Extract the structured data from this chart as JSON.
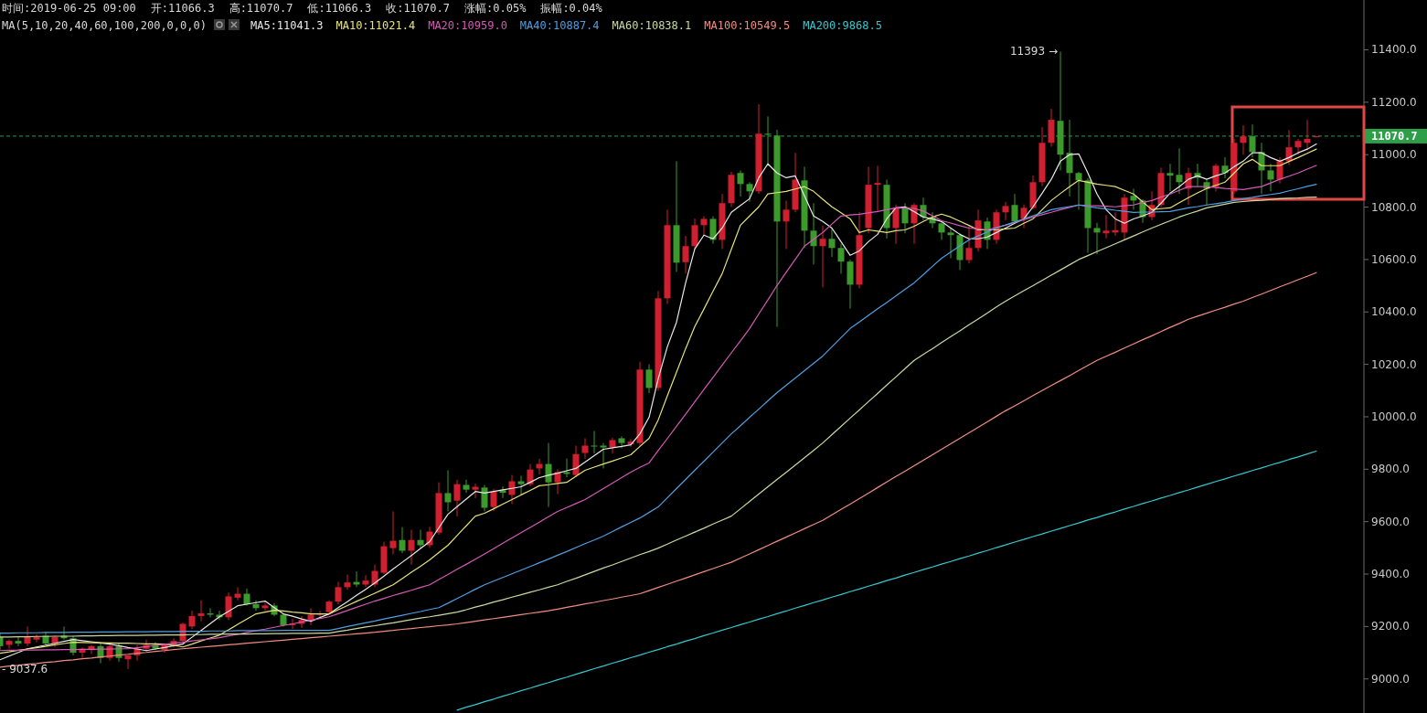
{
  "chart_data": {
    "type": "candlestick",
    "legend": "top",
    "tick_labels": "y",
    "legend_title": "MA(5,10,20,40,60,100,200,0,0,0)",
    "categories": [
      null,
      null,
      null,
      null,
      null,
      null,
      null,
      null,
      null,
      null,
      null,
      null,
      null,
      null,
      null,
      null,
      null,
      null,
      null,
      null,
      null,
      null,
      null,
      null,
      null,
      null,
      null,
      null,
      null,
      null,
      null,
      null,
      null,
      null,
      null,
      null,
      null,
      null,
      null,
      null,
      null,
      null,
      null,
      null,
      null,
      null,
      null,
      null,
      null,
      null,
      null,
      null,
      null,
      null,
      null,
      null,
      null,
      null,
      null,
      null,
      null,
      null,
      null,
      null,
      null,
      null,
      null,
      null,
      null,
      null,
      null,
      null,
      null,
      null,
      null,
      null,
      null,
      null,
      null,
      null,
      null,
      null,
      null,
      null,
      null,
      null,
      null,
      null,
      null,
      null,
      null,
      null,
      null,
      null,
      null,
      null,
      null,
      null,
      null,
      null,
      null,
      null,
      null,
      null,
      null,
      null,
      null,
      null,
      null,
      null,
      null,
      null,
      null,
      null,
      null,
      null,
      null,
      null,
      null,
      null,
      null,
      null,
      null,
      null,
      null,
      null,
      null,
      null,
      null,
      null,
      null,
      null,
      null,
      null,
      null,
      null,
      null,
      null,
      null,
      null,
      null,
      null,
      null,
      null,
      null
    ],
    "ohlc": [
      [
        9160,
        9175,
        9110,
        9125
      ],
      [
        9130,
        9150,
        9115,
        9145
      ],
      [
        9145,
        9160,
        9125,
        9135
      ],
      [
        9135,
        9200,
        9125,
        9160
      ],
      [
        9150,
        9170,
        9140,
        9160
      ],
      [
        9165,
        9180,
        9130,
        9135
      ],
      [
        9135,
        9165,
        9120,
        9160
      ],
      [
        9165,
        9200,
        9150,
        9155
      ],
      [
        9155,
        9165,
        9090,
        9100
      ],
      [
        9100,
        9120,
        9080,
        9115
      ],
      [
        9110,
        9130,
        9095,
        9125
      ],
      [
        9125,
        9140,
        9060,
        9080
      ],
      [
        9080,
        9130,
        9070,
        9125
      ],
      [
        9125,
        9135,
        9065,
        9080
      ],
      [
        9075,
        9090,
        9037.6,
        9090
      ],
      [
        9090,
        9130,
        9070,
        9115
      ],
      [
        9115,
        9150,
        9105,
        9130
      ],
      [
        9130,
        9140,
        9110,
        9115
      ],
      [
        9110,
        9135,
        9100,
        9130
      ],
      [
        9130,
        9155,
        9120,
        9145
      ],
      [
        9145,
        9215,
        9130,
        9210
      ],
      [
        9200,
        9260,
        9190,
        9240
      ],
      [
        9240,
        9300,
        9220,
        9250
      ],
      [
        9250,
        9270,
        9235,
        9245
      ],
      [
        9245,
        9260,
        9225,
        9235
      ],
      [
        9235,
        9330,
        9225,
        9315
      ],
      [
        9310,
        9350,
        9300,
        9325
      ],
      [
        9325,
        9345,
        9280,
        9285
      ],
      [
        9285,
        9300,
        9260,
        9270
      ],
      [
        9270,
        9290,
        9260,
        9280
      ],
      [
        9280,
        9290,
        9240,
        9245
      ],
      [
        9245,
        9250,
        9200,
        9205
      ],
      [
        9205,
        9230,
        9190,
        9210
      ],
      [
        9210,
        9240,
        9195,
        9225
      ],
      [
        9225,
        9270,
        9205,
        9245
      ],
      [
        9245,
        9260,
        9235,
        9250
      ],
      [
        9255,
        9300,
        9245,
        9295
      ],
      [
        9295,
        9370,
        9285,
        9350
      ],
      [
        9350,
        9398,
        9340,
        9368
      ],
      [
        9370,
        9410,
        9350,
        9360
      ],
      [
        9360,
        9395,
        9350,
        9375
      ],
      [
        9360,
        9436,
        9350,
        9412
      ],
      [
        9405,
        9523,
        9400,
        9506
      ],
      [
        9499,
        9639,
        9475,
        9527
      ],
      [
        9530,
        9579,
        9480,
        9489
      ],
      [
        9489,
        9569,
        9436,
        9530
      ],
      [
        9530,
        9569,
        9500,
        9510
      ],
      [
        9510,
        9580,
        9500,
        9562
      ],
      [
        9558,
        9750,
        9550,
        9709
      ],
      [
        9709,
        9796,
        9639,
        9674
      ],
      [
        9680,
        9760,
        9620,
        9743
      ],
      [
        9740,
        9760,
        9710,
        9722
      ],
      [
        9722,
        9745,
        9690,
        9733
      ],
      [
        9730,
        9740,
        9639,
        9653
      ],
      [
        9656,
        9725,
        9640,
        9715
      ],
      [
        9720,
        9735,
        9690,
        9710
      ],
      [
        9702,
        9778,
        9667,
        9754
      ],
      [
        9754,
        9775,
        9700,
        9743
      ],
      [
        9743,
        9820,
        9735,
        9799
      ],
      [
        9803,
        9840,
        9780,
        9820
      ],
      [
        9820,
        9900,
        9656,
        9750
      ],
      [
        9750,
        9800,
        9705,
        9789
      ],
      [
        9789,
        9841,
        9770,
        9782
      ],
      [
        9778,
        9890,
        9770,
        9858
      ],
      [
        9862,
        9918,
        9840,
        9890
      ],
      [
        9890,
        9946,
        9860,
        9887
      ],
      [
        9890,
        9900,
        9803,
        9883
      ],
      [
        9883,
        9920,
        9860,
        9911
      ],
      [
        9918,
        9925,
        9880,
        9900
      ],
      [
        9895,
        9915,
        9885,
        9905
      ],
      [
        9900,
        10210,
        9890,
        10180
      ],
      [
        10180,
        10200,
        10090,
        10110
      ],
      [
        10110,
        10480,
        10100,
        10452
      ],
      [
        10452,
        10790,
        10430,
        10731
      ],
      [
        10731,
        10975,
        10553,
        10588
      ],
      [
        10590,
        10690,
        10546,
        10651
      ],
      [
        10651,
        10756,
        10640,
        10731
      ],
      [
        10731,
        10765,
        10690,
        10755
      ],
      [
        10755,
        10765,
        10660,
        10675
      ],
      [
        10675,
        10850,
        10640,
        10815
      ],
      [
        10815,
        10935,
        10800,
        10923
      ],
      [
        10930,
        10940,
        10840,
        10888
      ],
      [
        10888,
        10895,
        10820,
        10860
      ],
      [
        10860,
        11192,
        10850,
        11080
      ],
      [
        11080,
        11146,
        10958,
        11076
      ],
      [
        11073,
        11095,
        10343,
        10745
      ],
      [
        10745,
        10825,
        10640,
        10790
      ],
      [
        10790,
        11007,
        10780,
        10905
      ],
      [
        10902,
        10954,
        10644,
        10710
      ],
      [
        10710,
        10815,
        10581,
        10651
      ],
      [
        10651,
        10730,
        10494,
        10679
      ],
      [
        10679,
        10720,
        10610,
        10644
      ],
      [
        10644,
        10660,
        10546,
        10592
      ],
      [
        10592,
        10600,
        10413,
        10504
      ],
      [
        10504,
        10780,
        10490,
        10693
      ],
      [
        10720,
        10954,
        10700,
        10885
      ],
      [
        10885,
        10957,
        10780,
        10892
      ],
      [
        10885,
        10905,
        10680,
        10720
      ],
      [
        10720,
        10810,
        10660,
        10797
      ],
      [
        10800,
        10815,
        10700,
        10738
      ],
      [
        10738,
        10815,
        10660,
        10808
      ],
      [
        10808,
        10836,
        10750,
        10762
      ],
      [
        10762,
        10780,
        10720,
        10738
      ],
      [
        10738,
        10745,
        10675,
        10703
      ],
      [
        10703,
        10720,
        10605,
        10693
      ],
      [
        10693,
        10700,
        10560,
        10598
      ],
      [
        10598,
        10727,
        10585,
        10644
      ],
      [
        10644,
        10790,
        10630,
        10749
      ],
      [
        10745,
        10760,
        10640,
        10675
      ],
      [
        10675,
        10790,
        10660,
        10780
      ],
      [
        10780,
        10820,
        10750,
        10804
      ],
      [
        10808,
        10850,
        10740,
        10745
      ],
      [
        10755,
        10810,
        10720,
        10797
      ],
      [
        10797,
        10920,
        10790,
        10895
      ],
      [
        10895,
        11105,
        10880,
        11045
      ],
      [
        11045,
        11175,
        11030,
        11133
      ],
      [
        11129,
        11393,
        10940,
        11000
      ],
      [
        11007,
        11133,
        10840,
        10930
      ],
      [
        10930,
        10935,
        10790,
        10902
      ],
      [
        10902,
        10910,
        10626,
        10720
      ],
      [
        10720,
        10740,
        10620,
        10703
      ],
      [
        10700,
        10770,
        10680,
        10710
      ],
      [
        10703,
        10780,
        10690,
        10712
      ],
      [
        10703,
        10850,
        10675,
        10836
      ],
      [
        10843,
        10870,
        10790,
        10825
      ],
      [
        10825,
        10830,
        10740,
        10762
      ],
      [
        10762,
        10860,
        10750,
        10808
      ],
      [
        10808,
        10950,
        10800,
        10930
      ],
      [
        10930,
        10965,
        10860,
        10920
      ],
      [
        10923,
        11024,
        10850,
        10895
      ],
      [
        10870,
        10950,
        10808,
        10930
      ],
      [
        10930,
        10965,
        10880,
        10912
      ],
      [
        10895,
        10905,
        10808,
        10870
      ],
      [
        10877,
        10965,
        10860,
        10958
      ],
      [
        10958,
        10990,
        10910,
        10930
      ],
      [
        10860,
        11060,
        10850,
        11045
      ],
      [
        11045,
        11112,
        11000,
        11070
      ],
      [
        11070,
        11115,
        10990,
        11010
      ],
      [
        11010,
        11045,
        10850,
        10940
      ],
      [
        10940,
        10965,
        10860,
        10905
      ],
      [
        10905,
        10990,
        10890,
        10975
      ],
      [
        10975,
        11094,
        10960,
        11028
      ],
      [
        11028,
        11060,
        11000,
        11052
      ],
      [
        11045,
        11133,
        11017,
        11060
      ],
      [
        11066.3,
        11070.7,
        11066.3,
        11070.7
      ]
    ],
    "colors": [
      "#3c9a2c",
      "#d0202f",
      "#3c9a2c",
      "#d0202f",
      "#d0202f",
      "#3c9a2c",
      "#d0202f",
      "#3c9a2c",
      "#3c9a2c",
      "#d0202f",
      "#d0202f",
      "#3c9a2c",
      "#d0202f",
      "#3c9a2c",
      "#d0202f",
      "#d0202f",
      "#d0202f",
      "#3c9a2c",
      "#d0202f",
      "#d0202f",
      "#d0202f",
      "#d0202f",
      "#d0202f",
      "#3c9a2c",
      "#3c9a2c",
      "#d0202f",
      "#d0202f",
      "#3c9a2c",
      "#3c9a2c",
      "#d0202f",
      "#3c9a2c",
      "#3c9a2c",
      "#d0202f",
      "#d0202f",
      "#d0202f",
      "#d0202f",
      "#d0202f",
      "#d0202f",
      "#d0202f",
      "#3c9a2c",
      "#d0202f",
      "#d0202f",
      "#d0202f",
      "#d0202f",
      "#3c9a2c",
      "#d0202f",
      "#3c9a2c",
      "#d0202f",
      "#d0202f",
      "#3c9a2c",
      "#d0202f",
      "#3c9a2c",
      "#d0202f",
      "#3c9a2c",
      "#d0202f",
      "#3c9a2c",
      "#d0202f",
      "#3c9a2c",
      "#d0202f",
      "#d0202f",
      "#3c9a2c",
      "#d0202f",
      "#3c9a2c",
      "#d0202f",
      "#d0202f",
      "#3c9a2c",
      "#3c9a2c",
      "#d0202f",
      "#3c9a2c",
      "#d0202f",
      "#d0202f",
      "#3c9a2c",
      "#d0202f",
      "#d0202f",
      "#3c9a2c",
      "#d0202f",
      "#d0202f",
      "#d0202f",
      "#3c9a2c",
      "#d0202f",
      "#d0202f",
      "#3c9a2c",
      "#3c9a2c",
      "#d0202f",
      "#3c9a2c",
      "#3c9a2c",
      "#d0202f",
      "#d0202f",
      "#3c9a2c",
      "#3c9a2c",
      "#d0202f",
      "#3c9a2c",
      "#3c9a2c",
      "#3c9a2c",
      "#d0202f",
      "#d0202f",
      "#d0202f",
      "#3c9a2c",
      "#d0202f",
      "#3c9a2c",
      "#d0202f",
      "#3c9a2c",
      "#3c9a2c",
      "#3c9a2c",
      "#3c9a2c",
      "#3c9a2c",
      "#d0202f",
      "#d0202f",
      "#3c9a2c",
      "#d0202f",
      "#d0202f",
      "#3c9a2c",
      "#d0202f",
      "#d0202f",
      "#d0202f",
      "#d0202f",
      "#3c9a2c",
      "#3c9a2c",
      "#3c9a2c",
      "#3c9a2c",
      "#3c9a2c",
      "#d0202f",
      "#d0202f",
      "#d0202f",
      "#3c9a2c",
      "#3c9a2c",
      "#d0202f",
      "#d0202f",
      "#3c9a2c",
      "#3c9a2c",
      "#d0202f",
      "#3c9a2c",
      "#3c9a2c",
      "#d0202f",
      "#3c9a2c",
      "#d0202f",
      "#d0202f",
      "#3c9a2c",
      "#3c9a2c",
      "#3c9a2c",
      "#d0202f",
      "#d0202f",
      "#d0202f",
      "#d0202f",
      "#d0202f"
    ],
    "series": [
      {
        "name": "MA5:11041.3",
        "type": "line",
        "color": "#e8e8e8",
        "values": [
          9073,
          9087,
          9101,
          9115,
          9122,
          9129,
          9136,
          9143,
          9150,
          9146,
          9142,
          9137,
          9133,
          9127,
          9120,
          9114,
          9108,
          9114,
          9120,
          9127,
          9133,
          9159,
          9185,
          9211,
          9237,
          9258,
          9279,
          9285,
          9291,
          9297,
          9272,
          9248,
          9239,
          9229,
          9220,
          9234,
          9248,
          9272,
          9295,
          9319,
          9342,
          9366,
          9392,
          9419,
          9445,
          9471,
          9498,
          9524,
          9576,
          9628,
          9657,
          9686,
          9715,
          9709,
          9715,
          9721,
          9727,
          9733,
          9750,
          9768,
          9777,
          9785,
          9794,
          9803,
          9827,
          9852,
          9876,
          9882,
          9887,
          9893,
          9935,
          9998,
          10145,
          10267,
          10361,
          10511,
          10640,
          10693,
          10679,
          10720,
          10780,
          10806,
          10832,
          10912,
          10965,
          10930,
          10912,
          10919,
          10843,
          10766,
          10745,
          10720,
          10668,
          10616,
          10633,
          10668,
          10696,
          10755,
          10797,
          10801,
          10783,
          10762,
          10755,
          10745,
          10720,
          10696,
          10679,
          10679,
          10686,
          10703,
          10720,
          10738,
          10755,
          10801,
          10853,
          10906,
          10975,
          11000,
          11003,
          10930,
          10850,
          10790,
          10755,
          10738,
          10755,
          10766,
          10780,
          10815,
          10853,
          10878,
          10906,
          10919,
          10906,
          10919,
          10930,
          10954,
          10975,
          11007,
          11007,
          10989,
          10975,
          10989,
          11007,
          11021,
          11041
        ]
      },
      {
        "name": "MA10:11021.4",
        "type": "line",
        "color": "#e6e27a",
        "values": [
          9098,
          9103,
          9109,
          9114,
          9119,
          9124,
          9130,
          9135,
          9140,
          9139,
          9138,
          9138,
          9137,
          9136,
          9136,
          9135,
          9134,
          9134,
          9133,
          9128,
          9122,
          9133,
          9145,
          9156,
          9167,
          9187,
          9208,
          9228,
          9248,
          9255,
          9262,
          9259,
          9255,
          9252,
          9248,
          9248,
          9248,
          9264,
          9280,
          9296,
          9311,
          9327,
          9343,
          9359,
          9383,
          9407,
          9430,
          9454,
          9482,
          9510,
          9547,
          9584,
          9621,
          9632,
          9649,
          9667,
          9684,
          9702,
          9719,
          9737,
          9741,
          9746,
          9750,
          9773,
          9796,
          9808,
          9820,
          9831,
          9843,
          9855,
          9887,
          9918,
          9988,
          10080,
          10170,
          10260,
          10344,
          10411,
          10479,
          10546,
          10639,
          10731,
          10766,
          10801,
          10850,
          10855,
          10860,
          10869,
          10878,
          10860,
          10830,
          10801,
          10778,
          10755,
          10703,
          10713,
          10708,
          10703,
          10710,
          10713,
          10727,
          10745,
          10762,
          10773,
          10762,
          10746,
          10730,
          10713,
          10713,
          10713,
          10717,
          10720,
          10738,
          10755,
          10790,
          10825,
          10852,
          10878,
          10902,
          10895,
          10888,
          10883,
          10878,
          10864,
          10850,
          10820,
          10790,
          10794,
          10797,
          10817,
          10836,
          10854,
          10871,
          10883,
          10895,
          10930,
          10965,
          10982,
          10958,
          10958,
          10958,
          10974,
          10989,
          11005,
          11021
        ]
      },
      {
        "name": "MA20:10959.0",
        "type": "line",
        "color": "#d45ab6",
        "values": [
          9108,
          9109,
          9109,
          9110,
          9110,
          9111,
          9111,
          9112,
          9112,
          9113,
          9113,
          9114,
          9114,
          9115,
          9115,
          9119,
          9123,
          9128,
          9132,
          9136,
          9140,
          9145,
          9149,
          9153,
          9157,
          9164,
          9170,
          9177,
          9184,
          9190,
          9197,
          9204,
          9210,
          9217,
          9224,
          9230,
          9237,
          9249,
          9261,
          9273,
          9285,
          9297,
          9307,
          9318,
          9328,
          9338,
          9349,
          9359,
          9379,
          9398,
          9418,
          9437,
          9457,
          9477,
          9497,
          9518,
          9538,
          9558,
          9578,
          9598,
          9619,
          9639,
          9654,
          9669,
          9684,
          9705,
          9726,
          9747,
          9768,
          9789,
          9807,
          9824,
          9871,
          9917,
          9964,
          10010,
          10057,
          10104,
          10150,
          10197,
          10244,
          10290,
          10337,
          10392,
          10446,
          10501,
          10551,
          10601,
          10651,
          10677,
          10703,
          10735,
          10766,
          10770,
          10773,
          10778,
          10783,
          10790,
          10797,
          10796,
          10795,
          10785,
          10767,
          10748,
          10739,
          10729,
          10720,
          10717,
          10713,
          10722,
          10731,
          10741,
          10752,
          10762,
          10771,
          10780,
          10790,
          10799,
          10808,
          10806,
          10805,
          10803,
          10801,
          10805,
          10808,
          10817,
          10825,
          10838,
          10850,
          10864,
          10878,
          10878,
          10878,
          10875,
          10871,
          10869,
          10867,
          10873,
          10878,
          10892,
          10906,
          10918,
          10930,
          10945,
          10959
        ]
      },
      {
        "name": "MA40:10887.4",
        "type": "line",
        "color": "#4f9ee0",
        "values": [
          9175,
          9175,
          9176,
          9176,
          9176,
          9177,
          9177,
          9177,
          9178,
          9178,
          9178,
          9179,
          9179,
          9179,
          9180,
          9180,
          9180,
          9181,
          9181,
          9181,
          9182,
          9182,
          9182,
          9183,
          9183,
          9183,
          9184,
          9184,
          9184,
          9184,
          9184,
          9185,
          9185,
          9185,
          9185,
          9185,
          9185,
          9192,
          9200,
          9207,
          9214,
          9221,
          9229,
          9236,
          9243,
          9250,
          9257,
          9265,
          9272,
          9289,
          9307,
          9324,
          9342,
          9359,
          9373,
          9387,
          9401,
          9415,
          9429,
          9443,
          9457,
          9472,
          9486,
          9501,
          9516,
          9530,
          9545,
          9562,
          9580,
          9597,
          9614,
          9635,
          9656,
          9691,
          9726,
          9761,
          9796,
          9830,
          9865,
          9900,
          9935,
          9966,
          9998,
          10029,
          10061,
          10092,
          10120,
          10148,
          10176,
          10204,
          10232,
          10267,
          10302,
          10337,
          10362,
          10387,
          10412,
          10436,
          10461,
          10486,
          10511,
          10542,
          10574,
          10605,
          10628,
          10652,
          10675,
          10690,
          10705,
          10720,
          10732,
          10743,
          10755,
          10767,
          10778,
          10790,
          10796,
          10802,
          10808,
          10802,
          10797,
          10793,
          10788,
          10784,
          10780,
          10781,
          10781,
          10782,
          10783,
          10790,
          10797,
          10802,
          10808,
          10813,
          10818,
          10825,
          10832,
          10837,
          10843,
          10848,
          10853,
          10862,
          10870,
          10879,
          10887
        ]
      },
      {
        "name": "MA60:10838.1",
        "type": "line",
        "color": "#c9d9a0",
        "values": [
          9160,
          9160,
          9161,
          9161,
          9162,
          9162,
          9163,
          9163,
          9163,
          9164,
          9164,
          9165,
          9165,
          9166,
          9166,
          9166,
          9167,
          9167,
          9168,
          9168,
          9168,
          9169,
          9169,
          9170,
          9170,
          9171,
          9171,
          9171,
          9172,
          9172,
          9173,
          9173,
          9174,
          9174,
          9174,
          9175,
          9175,
          9181,
          9186,
          9192,
          9198,
          9203,
          9209,
          9214,
          9220,
          9226,
          9232,
          9237,
          9243,
          9249,
          9255,
          9264,
          9274,
          9283,
          9293,
          9302,
          9312,
          9321,
          9331,
          9340,
          9350,
          9359,
          9372,
          9384,
          9397,
          9410,
          9423,
          9435,
          9448,
          9461,
          9474,
          9486,
          9499,
          9514,
          9530,
          9545,
          9560,
          9575,
          9591,
          9606,
          9621,
          9649,
          9677,
          9705,
          9733,
          9761,
          9788,
          9816,
          9844,
          9872,
          9900,
          9932,
          9963,
          9995,
          10026,
          10058,
          10089,
          10121,
          10152,
          10184,
          10215,
          10238,
          10260,
          10283,
          10306,
          10328,
          10351,
          10373,
          10396,
          10419,
          10441,
          10461,
          10481,
          10500,
          10520,
          10540,
          10560,
          10580,
          10600,
          10615,
          10630,
          10645,
          10660,
          10675,
          10690,
          10705,
          10720,
          10734,
          10748,
          10762,
          10774,
          10785,
          10797,
          10804,
          10811,
          10818,
          10821,
          10824,
          10826,
          10829,
          10832,
          10834,
          10835,
          10837,
          10838
        ]
      },
      {
        "name": "MA100:10549.5",
        "type": "line",
        "color": "#f08c82",
        "values": [
          9045,
          9049,
          9052,
          9056,
          9059,
          9063,
          9066,
          9070,
          9073,
          9077,
          9080,
          9084,
          9087,
          9091,
          9094,
          9098,
          9101,
          9105,
          9108,
          9112,
          9115,
          9118,
          9121,
          9124,
          9127,
          9130,
          9133,
          9136,
          9139,
          9142,
          9145,
          9148,
          9151,
          9154,
          9157,
          9160,
          9163,
          9166,
          9169,
          9172,
          9175,
          9178,
          9182,
          9185,
          9189,
          9192,
          9196,
          9199,
          9203,
          9206,
          9210,
          9215,
          9220,
          9225,
          9230,
          9235,
          9240,
          9245,
          9250,
          9255,
          9260,
          9266,
          9273,
          9279,
          9286,
          9292,
          9299,
          9305,
          9312,
          9318,
          9325,
          9337,
          9349,
          9361,
          9373,
          9385,
          9397,
          9409,
          9421,
          9433,
          9445,
          9461,
          9477,
          9493,
          9509,
          9525,
          9541,
          9557,
          9573,
          9589,
          9605,
          9626,
          9647,
          9667,
          9688,
          9709,
          9730,
          9751,
          9772,
          9792,
          9813,
          9834,
          9855,
          9876,
          9897,
          9918,
          9939,
          9960,
          9981,
          10002,
          10023,
          10042,
          10061,
          10081,
          10100,
          10119,
          10138,
          10157,
          10177,
          10196,
          10215,
          10231,
          10246,
          10262,
          10278,
          10294,
          10309,
          10325,
          10341,
          10356,
          10372,
          10384,
          10395,
          10407,
          10418,
          10430,
          10441,
          10455,
          10468,
          10482,
          10496,
          10509,
          10523,
          10536,
          10550
        ]
      },
      {
        "name": "MA200:9868.5",
        "type": "line",
        "color": "#35c8ce",
        "values": [
          null,
          null,
          null,
          null,
          null,
          null,
          null,
          null,
          null,
          null,
          null,
          null,
          null,
          null,
          null,
          null,
          null,
          null,
          null,
          null,
          null,
          null,
          null,
          null,
          null,
          null,
          null,
          null,
          null,
          null,
          null,
          null,
          null,
          null,
          null,
          null,
          null,
          null,
          null,
          null,
          null,
          null,
          null,
          null,
          null,
          null,
          null,
          null,
          null,
          null,
          8881,
          8892,
          8902,
          8913,
          8923,
          8934,
          8944,
          8955,
          8965,
          8976,
          8986,
          8997,
          9007,
          9018,
          9028,
          9039,
          9049,
          9060,
          9070,
          9081,
          9091,
          9102,
          9112,
          9123,
          9133,
          9144,
          9154,
          9165,
          9175,
          9186,
          9196,
          9207,
          9217,
          9228,
          9238,
          9249,
          9259,
          9270,
          9280,
          9291,
          9301,
          9312,
          9322,
          9333,
          9343,
          9354,
          9364,
          9375,
          9385,
          9396,
          9406,
          9417,
          9427,
          9438,
          9448,
          9459,
          9469,
          9480,
          9490,
          9501,
          9511,
          9522,
          9532,
          9543,
          9553,
          9564,
          9574,
          9585,
          9595,
          9606,
          9616,
          9627,
          9637,
          9648,
          9658,
          9669,
          9679,
          9690,
          9700,
          9711,
          9721,
          9732,
          9742,
          9753,
          9763,
          9774,
          9784,
          9795,
          9805,
          9816,
          9826,
          9837,
          9847,
          9858,
          9869
        ]
      }
    ],
    "ylim": [
      8870,
      11590
    ],
    "yticks": [
      {
        "value": 9000,
        "label": "9000.0"
      },
      {
        "value": 9200,
        "label": "9200.0"
      },
      {
        "value": 9400,
        "label": "9400.0"
      },
      {
        "value": 9600,
        "label": "9600.0"
      },
      {
        "value": 9800,
        "label": "9800.0"
      },
      {
        "value": 10000,
        "label": "10000.0"
      },
      {
        "value": 10200,
        "label": "10200.0"
      },
      {
        "value": 10400,
        "label": "10400.0"
      },
      {
        "value": 10600,
        "label": "10600.0"
      },
      {
        "value": 10800,
        "label": "10800.0"
      },
      {
        "value": 11000,
        "label": "11000.0"
      },
      {
        "value": 11200,
        "label": "11200.0"
      },
      {
        "value": 11400,
        "label": "11400.0"
      }
    ],
    "ref_lines": [
      {
        "axis": "y",
        "value": 11070.7,
        "label": "11070.7",
        "color": "#2f9e48",
        "line_style": "dashed"
      }
    ],
    "annotations": [
      "时间:2019-06-25 09:00",
      "开:11066.3",
      "高:11070.7",
      "低:11066.3",
      "收:11070.7",
      "涨幅:0.05%",
      "振幅:0.04%",
      "11393 →",
      "- 9037.6"
    ]
  }
}
